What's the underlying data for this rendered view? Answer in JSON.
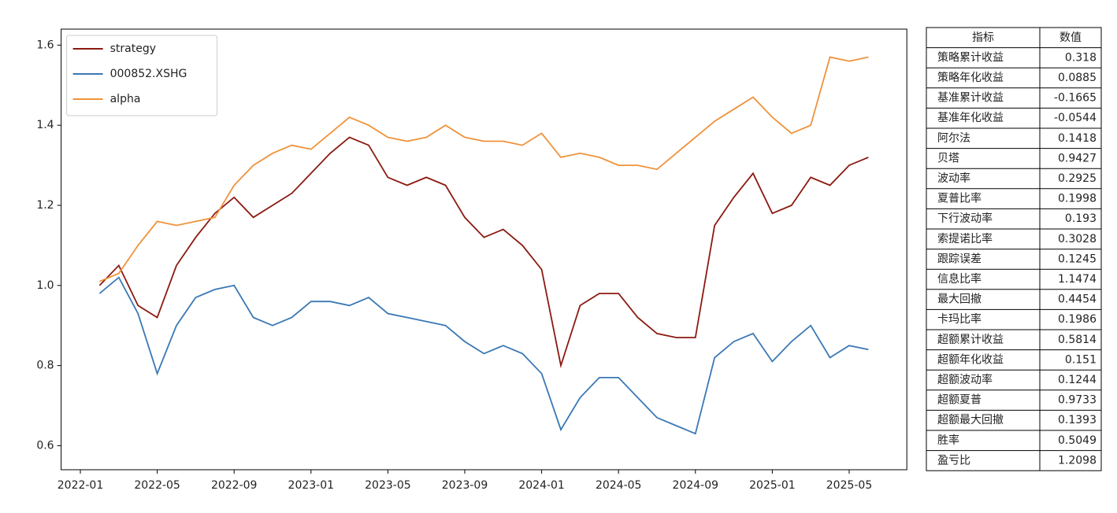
{
  "chart_data": {
    "type": "line",
    "x": [
      "2022-02",
      "2022-03",
      "2022-04",
      "2022-05",
      "2022-06",
      "2022-07",
      "2022-08",
      "2022-09",
      "2022-10",
      "2022-11",
      "2022-12",
      "2023-01",
      "2023-02",
      "2023-03",
      "2023-04",
      "2023-05",
      "2023-06",
      "2023-07",
      "2023-08",
      "2023-09",
      "2023-10",
      "2023-11",
      "2023-12",
      "2024-01",
      "2024-02",
      "2024-03",
      "2024-04",
      "2024-05",
      "2024-06",
      "2024-07",
      "2024-08",
      "2024-09",
      "2024-10",
      "2024-11",
      "2024-12",
      "2025-01",
      "2025-02",
      "2025-03",
      "2025-04",
      "2025-05",
      "2025-06"
    ],
    "series": [
      {
        "name": "strategy",
        "color": "#8b1a10",
        "values": [
          1.0,
          1.05,
          0.95,
          0.92,
          1.05,
          1.12,
          1.18,
          1.22,
          1.17,
          1.2,
          1.23,
          1.28,
          1.33,
          1.37,
          1.35,
          1.27,
          1.25,
          1.27,
          1.25,
          1.17,
          1.12,
          1.14,
          1.1,
          1.04,
          0.8,
          0.95,
          0.98,
          0.98,
          0.92,
          0.88,
          0.87,
          0.87,
          1.15,
          1.22,
          1.28,
          1.18,
          1.2,
          1.27,
          1.25,
          1.3,
          1.32
        ]
      },
      {
        "name": "000852.XSHG",
        "color": "#3a78b5",
        "values": [
          0.98,
          1.02,
          0.93,
          0.78,
          0.9,
          0.97,
          0.99,
          1.0,
          0.92,
          0.9,
          0.92,
          0.96,
          0.96,
          0.95,
          0.97,
          0.93,
          0.92,
          0.91,
          0.9,
          0.86,
          0.83,
          0.85,
          0.83,
          0.78,
          0.64,
          0.72,
          0.77,
          0.77,
          0.72,
          0.67,
          0.65,
          0.63,
          0.82,
          0.86,
          0.88,
          0.81,
          0.86,
          0.9,
          0.82,
          0.85,
          0.84
        ]
      },
      {
        "name": "alpha",
        "color": "#f0923a",
        "values": [
          1.01,
          1.03,
          1.1,
          1.16,
          1.15,
          1.16,
          1.17,
          1.25,
          1.3,
          1.33,
          1.35,
          1.34,
          1.38,
          1.42,
          1.4,
          1.37,
          1.36,
          1.37,
          1.4,
          1.37,
          1.36,
          1.36,
          1.35,
          1.38,
          1.32,
          1.33,
          1.32,
          1.3,
          1.3,
          1.29,
          1.33,
          1.37,
          1.41,
          1.44,
          1.47,
          1.42,
          1.38,
          1.4,
          1.57,
          1.56,
          1.57
        ]
      }
    ],
    "xlim": [
      "2021-12",
      "2025-08"
    ],
    "xticks": [
      "2022-01",
      "2022-05",
      "2022-09",
      "2023-01",
      "2023-05",
      "2023-09",
      "2024-01",
      "2024-05",
      "2024-09",
      "2025-01",
      "2025-05"
    ],
    "ylim": [
      0.54,
      1.64
    ],
    "yticks": [
      0.6,
      0.8,
      {
        "value": 1,
        "label": "1.0"
      },
      1.2,
      1.4,
      1.6
    ],
    "legend": "upper left"
  },
  "table": {
    "header": [
      "指标",
      "数值"
    ],
    "rows": [
      [
        "策略累计收益",
        "0.318"
      ],
      [
        "策略年化收益",
        "0.0885"
      ],
      [
        "基准累计收益",
        "-0.1665"
      ],
      [
        "基准年化收益",
        "-0.0544"
      ],
      [
        "阿尔法",
        "0.1418"
      ],
      [
        "贝塔",
        "0.9427"
      ],
      [
        "波动率",
        "0.2925"
      ],
      [
        "夏普比率",
        "0.1998"
      ],
      [
        "下行波动率",
        "0.193"
      ],
      [
        "索提诺比率",
        "0.3028"
      ],
      [
        "跟踪误差",
        "0.1245"
      ],
      [
        "信息比率",
        "1.1474"
      ],
      [
        "最大回撤",
        "0.4454"
      ],
      [
        "卡玛比率",
        "0.1986"
      ],
      [
        "超额累计收益",
        "0.5814"
      ],
      [
        "超额年化收益",
        "0.151"
      ],
      [
        "超额波动率",
        "0.1244"
      ],
      [
        "超额夏普",
        "0.9733"
      ],
      [
        "超额最大回撤",
        "0.1393"
      ],
      [
        "胜率",
        "0.5049"
      ],
      [
        "盈亏比",
        "1.2098"
      ]
    ]
  }
}
